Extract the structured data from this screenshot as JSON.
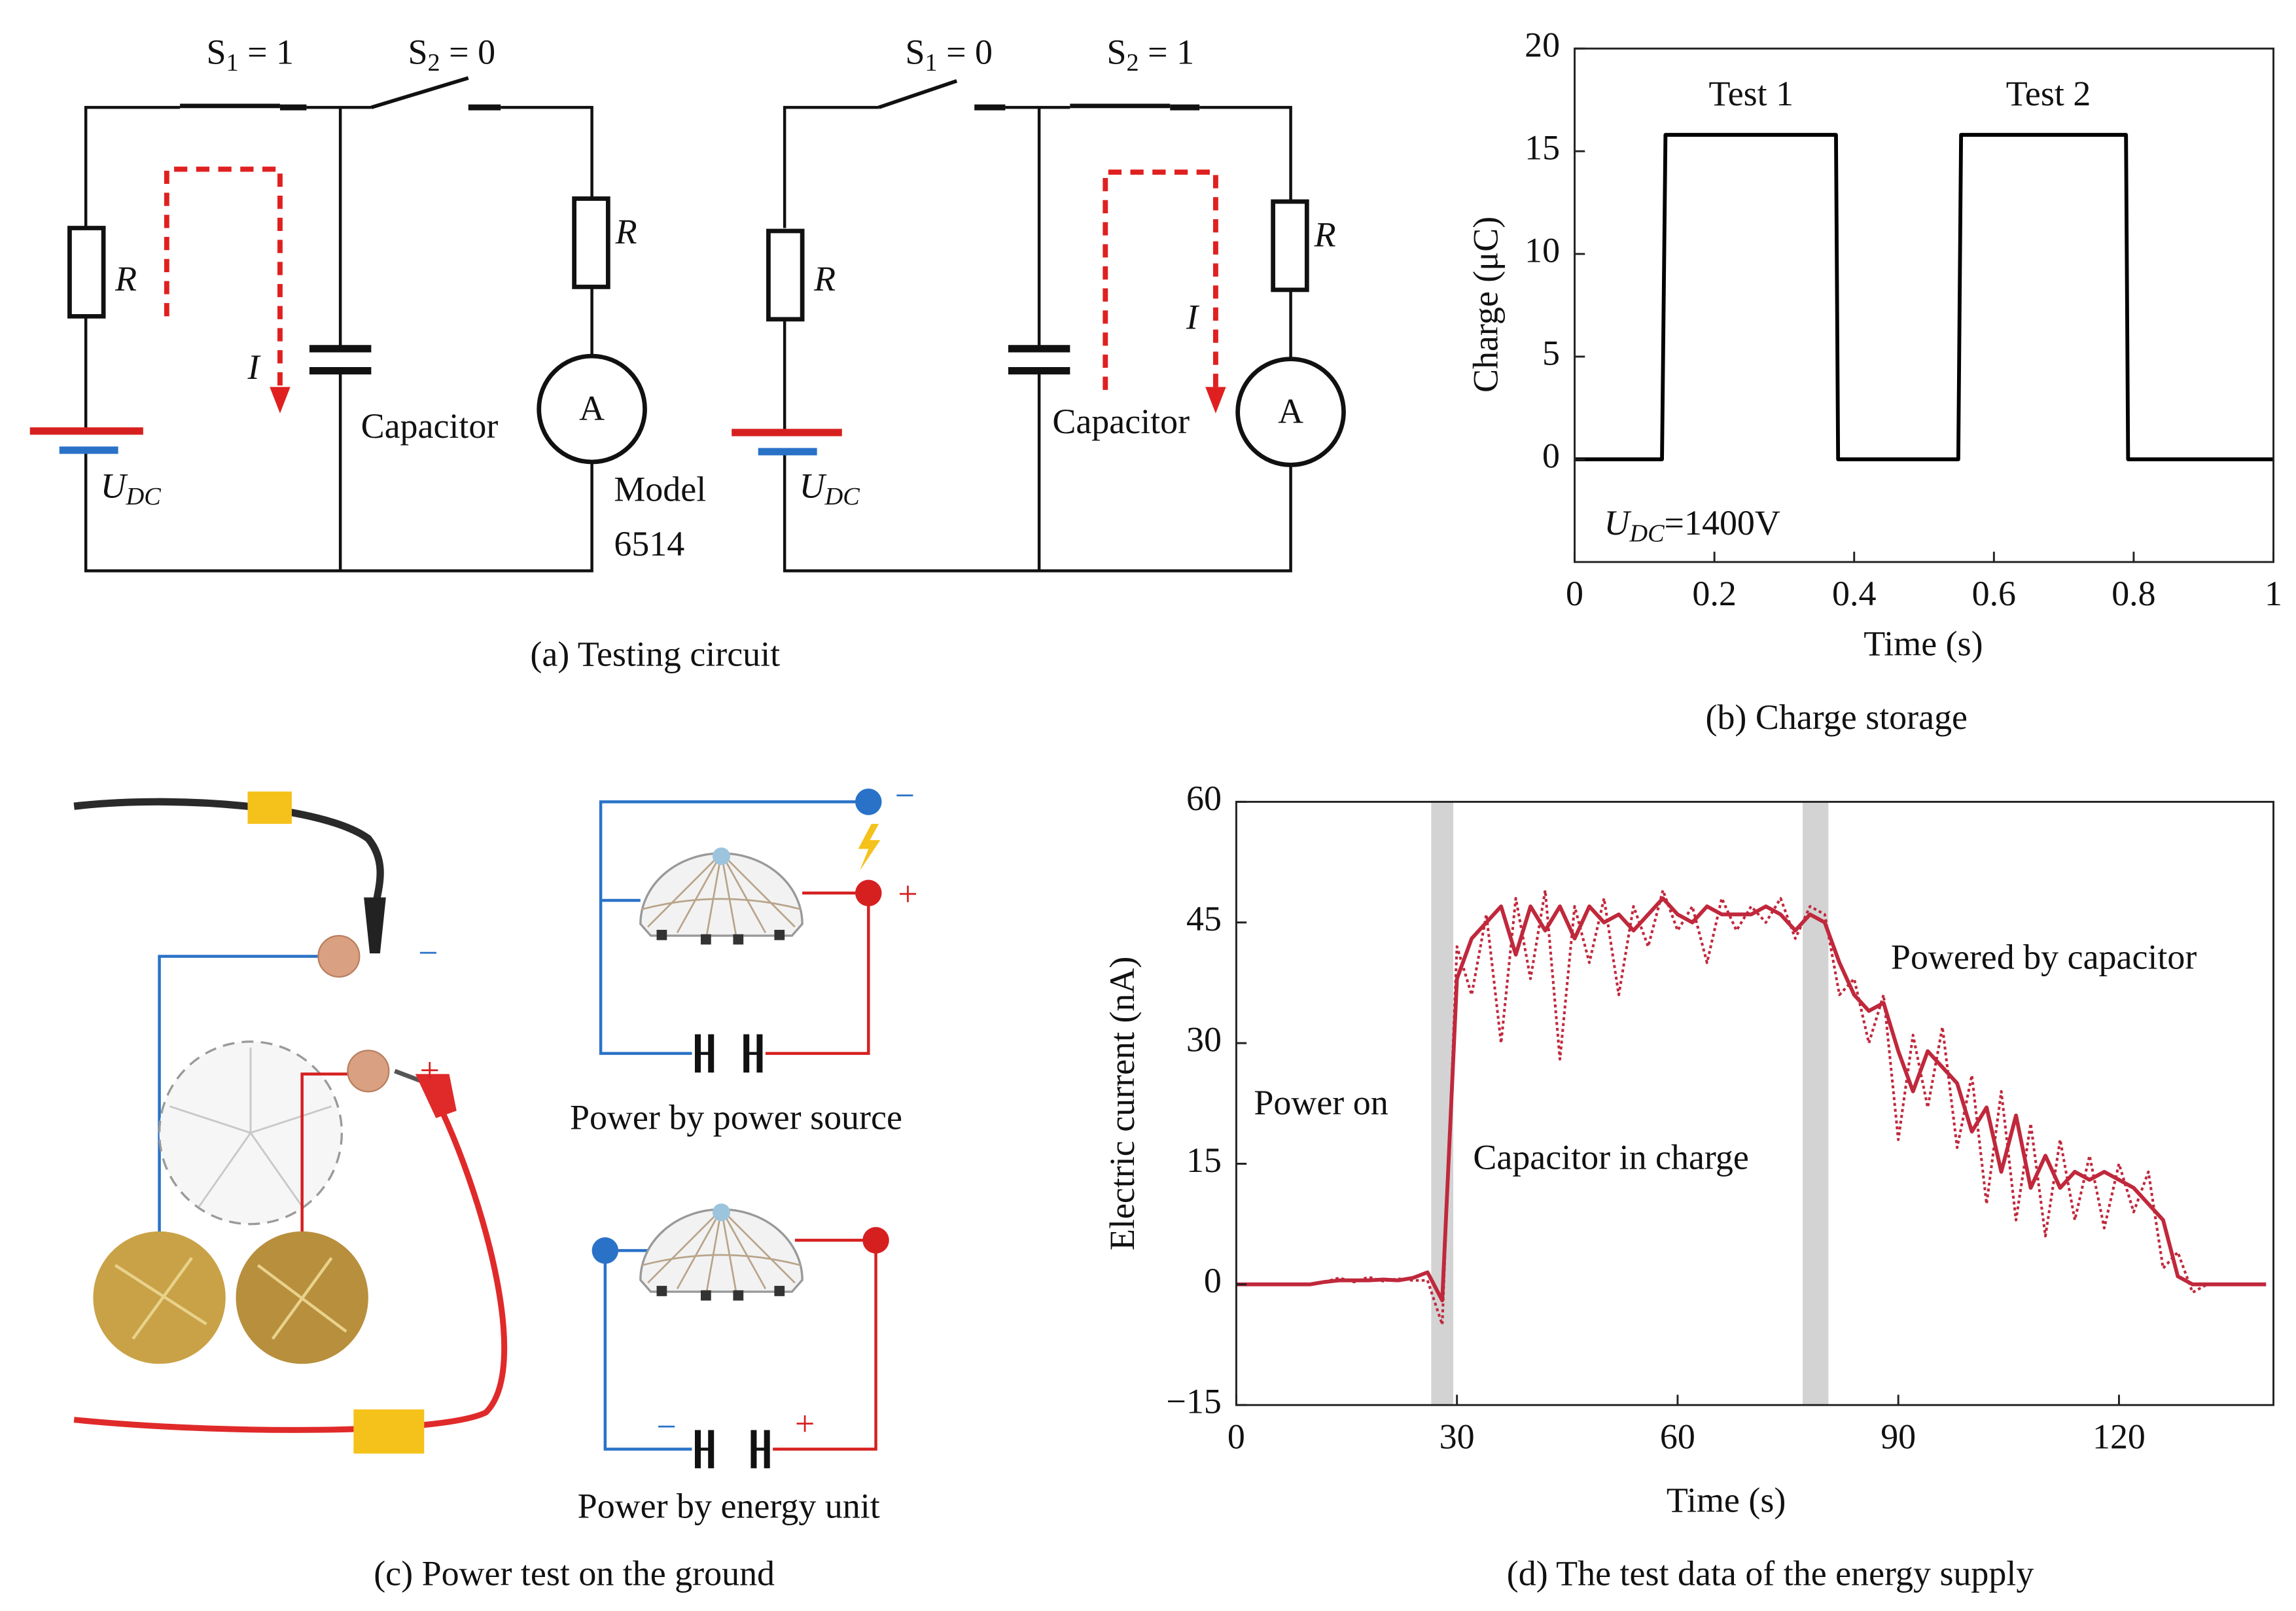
{
  "circuit": {
    "left": {
      "s1": {
        "symbol": "S",
        "subscript": "1",
        "suffix": " = 1"
      },
      "s2": {
        "symbol": "S",
        "subscript": "2",
        "suffix": " = 0"
      },
      "resistor_left": "R",
      "resistor_right": "R",
      "current": "I",
      "capacitor": "Capacitor",
      "ammeter": "A",
      "source": {
        "symbol": "U",
        "subscript": "DC"
      },
      "meter_model": [
        "Model",
        "6514"
      ]
    },
    "right": {
      "s1": {
        "symbol": "S",
        "subscript": "1",
        "suffix": " = 0"
      },
      "s2": {
        "symbol": "S",
        "subscript": "2",
        "suffix": " = 1"
      },
      "resistor_left": "R",
      "resistor_right": "R",
      "current": "I",
      "capacitor": "Capacitor",
      "ammeter": "A",
      "source": {
        "symbol": "U",
        "subscript": "DC"
      }
    },
    "caption": "(a)  Testing circuit"
  },
  "power_test": {
    "photo_signs": [
      "−",
      "+"
    ],
    "source_diagram": {
      "signs": [
        "−",
        "+"
      ],
      "label": "Power by power source"
    },
    "unit_diagram": {
      "signs": [
        "−",
        "+"
      ],
      "label": "Power by energy unit"
    },
    "caption": "(c)  Power test on the ground"
  },
  "chart_data": [
    {
      "type": "line",
      "caption": "(b)  Charge storage",
      "xlabel": "Time (s)",
      "ylabel": "Charge (μC)",
      "xlim": [
        0,
        1
      ],
      "ylim": [
        -5,
        20
      ],
      "xticks": [
        0,
        0.2,
        0.4,
        0.6,
        0.8,
        1
      ],
      "yticks": [
        0,
        5,
        10,
        15,
        20
      ],
      "x": [
        0,
        0.125,
        0.13,
        0.374,
        0.377,
        0.549,
        0.553,
        0.789,
        0.792,
        1
      ],
      "series": [
        {
          "color": "#000000",
          "style": "solid",
          "values": [
            0,
            0,
            15.8,
            15.8,
            0,
            0,
            15.8,
            15.8,
            0,
            0
          ]
        }
      ],
      "annotations": [
        "Test 1",
        "Test 2"
      ],
      "condition": {
        "symbol": "U",
        "subscript": "DC",
        "suffix": "=1400V"
      }
    },
    {
      "type": "line",
      "caption": "(d)  The test data of the energy supply",
      "xlabel": "Time (s)",
      "ylabel": "Electric current (nA)",
      "xlim": [
        0,
        141
      ],
      "ylim": [
        -15,
        60
      ],
      "xticks": [
        0,
        30,
        60,
        90,
        120
      ],
      "yticks": [
        {
          "value": -15,
          "label": "−15"
        },
        0,
        15,
        30,
        45,
        60
      ],
      "highlight_spans": [
        [
          26.5,
          29.5
        ],
        [
          77,
          80.5
        ]
      ],
      "highlight_color": "#d3d3d3",
      "x": [
        0,
        2,
        4,
        6,
        8,
        10,
        12,
        14,
        16,
        18,
        20,
        22,
        24,
        26,
        28,
        30,
        32,
        34,
        36,
        38,
        40,
        42,
        44,
        46,
        48,
        50,
        52,
        54,
        56,
        58,
        60,
        62,
        64,
        66,
        68,
        70,
        72,
        74,
        76,
        78,
        80,
        82,
        84,
        86,
        88,
        90,
        92,
        94,
        96,
        98,
        100,
        102,
        104,
        106,
        108,
        110,
        112,
        114,
        116,
        118,
        120,
        122,
        124,
        126,
        128,
        130,
        132,
        134,
        136,
        138,
        140
      ],
      "series": [
        {
          "color": "#c0283c",
          "style": "dotted",
          "values": [
            0,
            0,
            0,
            0,
            0,
            0,
            0.3,
            0.8,
            0.3,
            0.9,
            0.4,
            0.7,
            0.5,
            0.5,
            -5,
            42,
            36,
            46,
            30,
            48,
            38,
            49,
            28,
            47,
            40,
            48,
            36,
            47,
            42,
            49,
            44,
            47,
            40,
            48,
            44,
            47,
            45,
            48,
            43,
            47,
            46,
            36,
            38,
            30,
            36,
            18,
            31,
            22,
            32,
            17,
            26,
            10,
            24,
            8,
            20,
            6,
            18,
            8,
            16,
            7,
            15,
            9,
            14,
            2,
            4,
            -1,
            0,
            0,
            0,
            0,
            0
          ]
        },
        {
          "color": "#c0283c",
          "style": "solid",
          "values": [
            0,
            0,
            0,
            0,
            0,
            0,
            0.3,
            0.5,
            0.5,
            0.5,
            0.6,
            0.5,
            0.8,
            1.5,
            -2,
            38,
            43,
            45,
            47,
            41,
            47,
            44,
            47,
            43,
            47,
            45,
            46,
            44,
            46,
            48,
            46,
            45,
            47,
            46,
            46,
            46,
            47,
            46,
            44,
            46,
            45,
            40,
            36,
            34,
            35,
            29,
            24,
            29,
            27,
            25,
            19,
            22,
            14,
            21,
            12,
            16,
            12,
            14,
            13,
            14,
            13,
            12,
            10,
            8,
            1,
            0,
            0,
            0,
            0,
            0,
            0
          ]
        }
      ],
      "annotations": [
        "Power on",
        "Capacitor in charge",
        "Powered by capacitor"
      ]
    }
  ]
}
